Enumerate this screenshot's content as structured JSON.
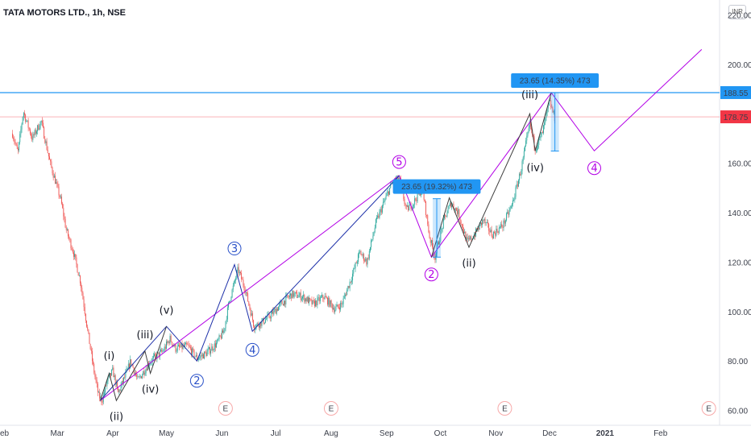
{
  "header": {
    "title": "TATA MOTORS LTD., 1h, NSE",
    "currency": "INR"
  },
  "chart_data": {
    "type": "line",
    "title": "TATA MOTORS LTD., 1h, NSE",
    "ylim": [
      54,
      226
    ],
    "y_ticks": [
      "220.00",
      "200.00",
      "180.00",
      "160.00",
      "140.00",
      "120.00",
      "100.00",
      "80.00",
      "60.00"
    ],
    "x_tick_labels": [
      "eb",
      "Mar",
      "Apr",
      "May",
      "Jun",
      "Jul",
      "Aug",
      "Sep",
      "Oct",
      "Nov",
      "Dec",
      "2021",
      "Feb"
    ],
    "price_lines": [
      {
        "label": "188.55",
        "value": 188.55,
        "color": "#2196f3"
      },
      {
        "label": "178.75",
        "value": 178.75,
        "color": "#f23645"
      }
    ],
    "price_series": {
      "x_start": "2020-02-05",
      "x_end": "2020-12-04",
      "keypoints": [
        [
          "2020-02-05",
          172
        ],
        [
          "2020-02-08",
          164
        ],
        [
          "2020-02-11",
          181
        ],
        [
          "2020-02-16",
          170
        ],
        [
          "2020-02-21",
          177
        ],
        [
          "2020-02-26",
          160
        ],
        [
          "2020-03-03",
          145
        ],
        [
          "2020-03-06",
          133
        ],
        [
          "2020-03-10",
          124
        ],
        [
          "2020-03-14",
          112
        ],
        [
          "2020-03-18",
          92
        ],
        [
          "2020-03-21",
          78
        ],
        [
          "2020-03-24",
          66
        ],
        [
          "2020-03-26",
          64
        ],
        [
          "2020-03-29",
          72
        ],
        [
          "2020-04-01",
          76
        ],
        [
          "2020-04-04",
          67
        ],
        [
          "2020-04-08",
          74
        ],
        [
          "2020-04-11",
          80
        ],
        [
          "2020-04-15",
          72
        ],
        [
          "2020-04-22",
          80
        ],
        [
          "2020-04-29",
          84
        ],
        [
          "2020-05-03",
          89
        ],
        [
          "2020-05-06",
          85
        ],
        [
          "2020-05-13",
          86
        ],
        [
          "2020-05-18",
          81
        ],
        [
          "2020-05-23",
          83
        ],
        [
          "2020-05-29",
          87
        ],
        [
          "2020-06-02",
          92
        ],
        [
          "2020-06-05",
          104
        ],
        [
          "2020-06-10",
          117
        ],
        [
          "2020-06-14",
          109
        ],
        [
          "2020-06-19",
          94
        ],
        [
          "2020-06-24",
          96
        ],
        [
          "2020-06-29",
          99
        ],
        [
          "2020-07-04",
          103
        ],
        [
          "2020-07-10",
          107
        ],
        [
          "2020-07-16",
          106
        ],
        [
          "2020-07-22",
          103
        ],
        [
          "2020-07-28",
          106
        ],
        [
          "2020-08-03",
          101
        ],
        [
          "2020-08-07",
          103
        ],
        [
          "2020-08-12",
          113
        ],
        [
          "2020-08-17",
          124
        ],
        [
          "2020-08-21",
          120
        ],
        [
          "2020-08-26",
          136
        ],
        [
          "2020-08-31",
          145
        ],
        [
          "2020-09-04",
          152
        ],
        [
          "2020-09-08",
          154
        ],
        [
          "2020-09-12",
          141
        ],
        [
          "2020-09-16",
          144
        ],
        [
          "2020-09-21",
          150
        ],
        [
          "2020-09-25",
          130
        ],
        [
          "2020-09-28",
          122
        ],
        [
          "2020-10-03",
          137
        ],
        [
          "2020-10-07",
          144
        ],
        [
          "2020-10-11",
          140
        ],
        [
          "2020-10-16",
          128
        ],
        [
          "2020-10-20",
          131
        ],
        [
          "2020-10-25",
          137
        ],
        [
          "2020-10-30",
          131
        ],
        [
          "2020-11-05",
          135
        ],
        [
          "2020-11-10",
          143
        ],
        [
          "2020-11-15",
          157
        ],
        [
          "2020-11-20",
          176
        ],
        [
          "2020-11-23",
          166
        ],
        [
          "2020-11-27",
          172
        ],
        [
          "2020-12-01",
          185
        ],
        [
          "2020-12-04",
          178
        ]
      ]
    },
    "wave_structures": [
      {
        "name": "primary",
        "color": "#b300e6",
        "points": [
          [
            "2020-03-25",
            64
          ],
          [
            "2020-09-08",
            155
          ],
          [
            "2020-09-26",
            122
          ],
          [
            "2020-12-02",
            188.5
          ],
          [
            "2020-12-26",
            165
          ],
          [
            "2021-02-24",
            206
          ]
        ]
      },
      {
        "name": "intermediate",
        "color": "#1c2fa8",
        "points": [
          [
            "2020-03-25",
            64
          ],
          [
            "2020-05-01",
            94
          ],
          [
            "2020-05-18",
            80
          ],
          [
            "2020-06-08",
            119
          ],
          [
            "2020-06-18",
            92
          ],
          [
            "2020-09-08",
            155
          ]
        ]
      },
      {
        "name": "minor-1",
        "color": "#3d3d3d",
        "points": [
          [
            "2020-03-25",
            64
          ],
          [
            "2020-03-30",
            75
          ],
          [
            "2020-04-03",
            64
          ],
          [
            "2020-04-19",
            84
          ],
          [
            "2020-04-22",
            75
          ],
          [
            "2020-05-01",
            94
          ]
        ]
      },
      {
        "name": "minor-2",
        "color": "#3d3d3d",
        "points": [
          [
            "2020-09-26",
            122
          ],
          [
            "2020-10-06",
            146
          ],
          [
            "2020-10-17",
            126
          ],
          [
            "2020-11-20",
            180
          ],
          [
            "2020-11-23",
            165
          ],
          [
            "2020-12-02",
            188.5
          ]
        ]
      }
    ],
    "wave_labels": [
      {
        "text": "(i)",
        "x": "2020-03-30",
        "y": 82,
        "color": "#131722"
      },
      {
        "text": "(ii)",
        "x": "2020-04-03",
        "y": 57.5,
        "color": "#131722"
      },
      {
        "text": "(iii)",
        "x": "2020-04-19",
        "y": 90.5,
        "color": "#131722"
      },
      {
        "text": "(iv)",
        "x": "2020-04-22",
        "y": 68.5,
        "color": "#131722"
      },
      {
        "text": "(v)",
        "x": "2020-05-01",
        "y": 100.5,
        "color": "#131722"
      },
      {
        "text": "2",
        "x": "2020-05-18",
        "y": 72,
        "color": "#2950c8",
        "circle": true
      },
      {
        "text": "3",
        "x": "2020-06-08",
        "y": 125.5,
        "color": "#2950c8",
        "circle": true
      },
      {
        "text": "4",
        "x": "2020-06-18",
        "y": 84.5,
        "color": "#2950c8",
        "circle": true
      },
      {
        "text": "5",
        "x": "2020-09-08",
        "y": 160.5,
        "color": "#b300e6",
        "circle": true
      },
      {
        "text": "2",
        "x": "2020-09-26",
        "y": 115,
        "color": "#b300e6",
        "circle": true
      },
      {
        "text": "(ii)",
        "x": "2020-10-17",
        "y": 119.5,
        "color": "#131722"
      },
      {
        "text": "(iii)",
        "x": "2020-11-20",
        "y": 187.5,
        "color": "#131722"
      },
      {
        "text": "(iv)",
        "x": "2020-11-23",
        "y": 158,
        "color": "#131722"
      },
      {
        "text": "4",
        "x": "2020-12-26",
        "y": 158,
        "color": "#b300e6",
        "circle": true
      }
    ],
    "measurements": [
      {
        "label": "23.65 (19.32%) 473",
        "x": "2020-09-29",
        "y_from": 122,
        "y_to": 145.65,
        "color": "#2196f3"
      },
      {
        "label": "23.65 (14.35%) 473",
        "x": "2020-12-04",
        "y_from": 164.9,
        "y_to": 188.55,
        "color": "#2196f3"
      }
    ],
    "event_markers": [
      {
        "label": "E",
        "x": "2020-06-03"
      },
      {
        "label": "E",
        "x": "2020-08-01"
      },
      {
        "label": "E",
        "x": "2020-11-06"
      },
      {
        "label": "E",
        "x": "2021-02-28"
      }
    ]
  }
}
